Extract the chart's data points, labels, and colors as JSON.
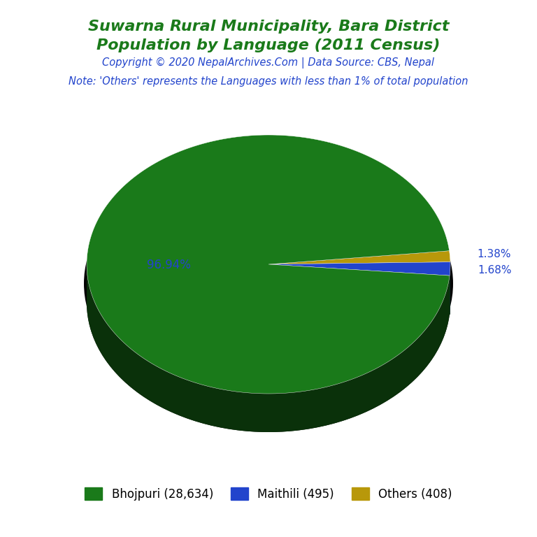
{
  "title_line1": "Suwarna Rural Municipality, Bara District",
  "title_line2": "Population by Language (2011 Census)",
  "copyright": "Copyright © 2020 NepalArchives.Com | Data Source: CBS, Nepal",
  "note": "Note: 'Others' represents the Languages with less than 1% of total population",
  "labels": [
    "Bhojpuri",
    "Maithili",
    "Others"
  ],
  "values": [
    28634,
    495,
    408
  ],
  "percentages": [
    96.94,
    1.68,
    1.38
  ],
  "colors": [
    "#1a7a1a",
    "#2244cc",
    "#b8980a"
  ],
  "legend_labels": [
    "Bhojpuri (28,634)",
    "Maithili (495)",
    "Others (408)"
  ],
  "title_color": "#1a7a1a",
  "copyright_color": "#2244cc",
  "note_color": "#2244cc",
  "pct_label_color": "#2244cc",
  "main_label_color": "#2244cc",
  "bg_color": "#ffffff",
  "shadow_color": "#111111"
}
